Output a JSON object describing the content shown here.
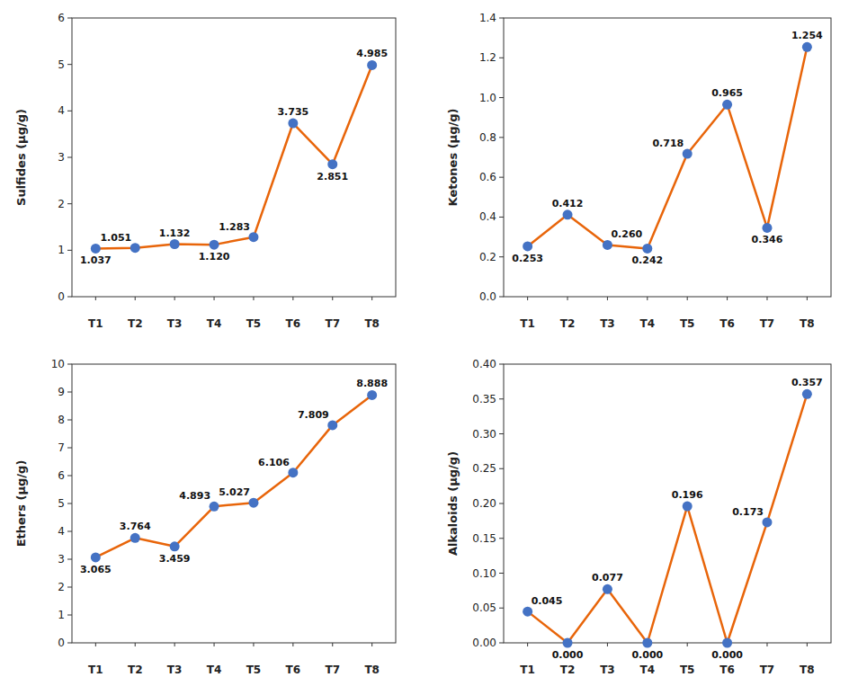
{
  "chart_data": [
    {
      "type": "line",
      "categories": [
        "T1",
        "T2",
        "T3",
        "T4",
        "T5",
        "T6",
        "T7",
        "T8"
      ],
      "values": [
        1.037,
        1.051,
        1.132,
        1.12,
        1.283,
        3.735,
        2.851,
        4.985
      ],
      "value_labels": [
        "1.037",
        "1.051",
        "1.132",
        "1.120",
        "1.283",
        "3.735",
        "2.851",
        "4.985"
      ],
      "y_label": "Sulfides (μg/g)",
      "ylim": [
        0,
        6
      ],
      "yticks": [
        0,
        1,
        2,
        3,
        4,
        5,
        6
      ],
      "color": "#E8650A",
      "colors": [
        "#4472C4",
        "#4472C4",
        "#4472C4",
        "#4472C4",
        "#4472C4",
        "#4472C4",
        "#4472C4",
        "#4472C4"
      ],
      "marker": "circle",
      "data_labels": true,
      "grid": false
    },
    {
      "type": "line",
      "categories": [
        "T1",
        "T2",
        "T3",
        "T4",
        "T5",
        "T6",
        "T7",
        "T8"
      ],
      "values": [
        0.253,
        0.412,
        0.26,
        0.242,
        0.718,
        0.965,
        0.346,
        1.254
      ],
      "value_labels": [
        "0.253",
        "0.412",
        "0.260",
        "0.242",
        "0.718",
        "0.965",
        "0.346",
        "1.254"
      ],
      "y_label": "Ketones (μg/g)",
      "ylim": [
        0,
        1.4
      ],
      "yticks": [
        {
          "value": 0,
          "label": "0.0"
        },
        {
          "value": 0.2,
          "label": "0.2"
        },
        {
          "value": 0.4,
          "label": "0.4"
        },
        {
          "value": 0.6,
          "label": "0.6"
        },
        {
          "value": 0.8,
          "label": "0.8"
        },
        {
          "value": 1.0,
          "label": "1.0"
        },
        {
          "value": 1.2,
          "label": "1.2"
        },
        {
          "value": 1.4,
          "label": "1.4"
        }
      ],
      "color": "#E8650A",
      "colors": [
        "#4472C4",
        "#4472C4",
        "#4472C4",
        "#4472C4",
        "#4472C4",
        "#4472C4",
        "#4472C4",
        "#4472C4"
      ],
      "marker": "circle",
      "data_labels": true,
      "grid": false
    },
    {
      "type": "line",
      "categories": [
        "T1",
        "T2",
        "T3",
        "T4",
        "T5",
        "T6",
        "T7",
        "T8"
      ],
      "values": [
        3.065,
        3.764,
        3.459,
        4.893,
        5.027,
        6.106,
        7.809,
        8.888
      ],
      "value_labels": [
        "3.065",
        "3.764",
        "3.459",
        "4.893",
        "5.027",
        "6.106",
        "7.809",
        "8.888"
      ],
      "y_label": "Ethers (μg/g)",
      "ylim": [
        0,
        10
      ],
      "yticks": [
        0,
        1,
        2,
        3,
        4,
        5,
        6,
        7,
        8,
        9,
        10
      ],
      "color": "#E8650A",
      "colors": [
        "#4472C4",
        "#4472C4",
        "#4472C4",
        "#4472C4",
        "#4472C4",
        "#4472C4",
        "#4472C4",
        "#4472C4"
      ],
      "marker": "circle",
      "data_labels": true,
      "grid": false
    },
    {
      "type": "line",
      "categories": [
        "T1",
        "T2",
        "T3",
        "T4",
        "T5",
        "T6",
        "T7",
        "T8"
      ],
      "values": [
        0.045,
        0.0,
        0.077,
        0.0,
        0.196,
        0.0,
        0.173,
        0.357
      ],
      "value_labels": [
        "0.045",
        "0.000",
        "0.077",
        "0.000",
        "0.196",
        "0.000",
        "0.173",
        "0.357"
      ],
      "y_label": "Alkaloids (μg/g)",
      "ylim": [
        0,
        0.4
      ],
      "yticks": [
        {
          "value": 0,
          "label": "0.00"
        },
        {
          "value": 0.05,
          "label": "0.05"
        },
        {
          "value": 0.1,
          "label": "0.10"
        },
        {
          "value": 0.15,
          "label": "0.15"
        },
        {
          "value": 0.2,
          "label": "0.20"
        },
        {
          "value": 0.25,
          "label": "0.25"
        },
        {
          "value": 0.3,
          "label": "0.30"
        },
        {
          "value": 0.35,
          "label": "0.35"
        },
        {
          "value": 0.4,
          "label": "0.40"
        }
      ],
      "color": "#E8650A",
      "colors": [
        "#4472C4",
        "#4472C4",
        "#4472C4",
        "#4472C4",
        "#4472C4",
        "#4472C4",
        "#4472C4",
        "#4472C4"
      ],
      "marker": "circle",
      "data_labels": true,
      "grid": false
    }
  ]
}
